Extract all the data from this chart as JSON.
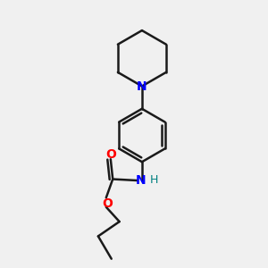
{
  "bg_color": "#f0f0f0",
  "bond_color": "#1a1a1a",
  "N_color": "#0000ff",
  "O_color": "#ff0000",
  "H_color": "#008080",
  "line_width": 1.8,
  "figsize": [
    3.0,
    3.0
  ],
  "dpi": 100,
  "xlim": [
    0,
    10
  ],
  "ylim": [
    0,
    10
  ]
}
